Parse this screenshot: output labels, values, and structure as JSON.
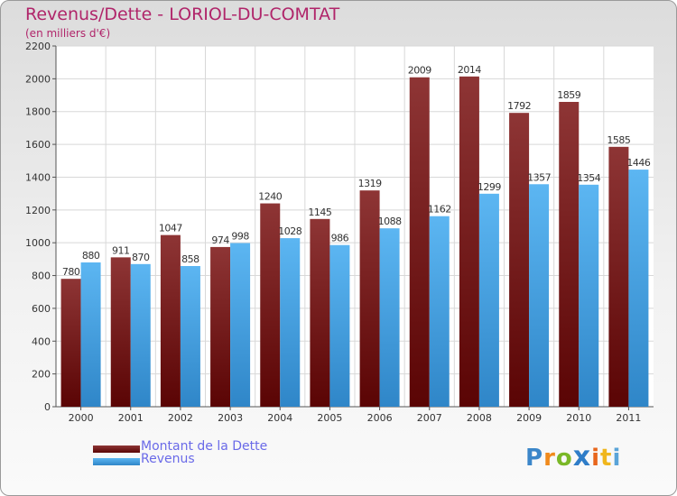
{
  "title": "Revenus/Dette - LORIOL-DU-COMTAT",
  "unit_label": "(en milliers d'€)",
  "colors": {
    "debt": "#6e1010",
    "revenue": "#4aa6ea",
    "title": "#b0256a",
    "legend_text": "#6a6ae8"
  },
  "legend": {
    "debt_label": "Montant de la Dette",
    "revenue_label": "Revenus"
  },
  "logo": {
    "text": "Proxiti",
    "letters": [
      "P",
      "r",
      "o",
      "x",
      "i",
      "t",
      "i"
    ]
  },
  "chart_data": {
    "type": "bar",
    "title": "Revenus/Dette - LORIOL-DU-COMTAT",
    "ylabel": "(en milliers d'€)",
    "xlabel": "",
    "ylim": [
      0,
      2200
    ],
    "yticks": [
      0,
      200,
      400,
      600,
      800,
      1000,
      1200,
      1400,
      1600,
      1800,
      2000,
      2200
    ],
    "grid": true,
    "categories": [
      "2000",
      "2001",
      "2002",
      "2003",
      "2004",
      "2005",
      "2006",
      "2007",
      "2008",
      "2009",
      "2010",
      "2011"
    ],
    "series": [
      {
        "name": "Montant de la Dette",
        "values": [
          780,
          911,
          1047,
          974,
          1240,
          1145,
          1319,
          2009,
          2014,
          1792,
          1859,
          1585
        ]
      },
      {
        "name": "Revenus",
        "values": [
          880,
          870,
          858,
          998,
          1028,
          986,
          1088,
          1162,
          1299,
          1357,
          1354,
          1446
        ]
      }
    ]
  }
}
